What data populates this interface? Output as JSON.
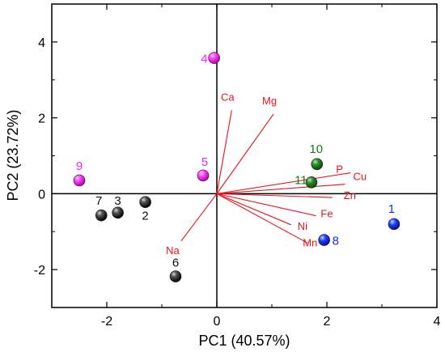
{
  "colors": {
    "loading": "#e8141c",
    "group_black": "#111111",
    "group_magenta": "#ff22ff",
    "group_green": "#1f7a1f",
    "group_blue": "#1133ee"
  },
  "chart_data": {
    "type": "scatter",
    "subtype": "biplot",
    "title": "",
    "xlabel": "PC1 (40.57%)",
    "ylabel": "PC2 (23.72%)",
    "xlim": [
      -3,
      4
    ],
    "ylim": [
      -3,
      5
    ],
    "x_ticks": [
      "-2",
      "0",
      "2",
      "4"
    ],
    "y_ticks": [
      "-2",
      "0",
      "2",
      "4"
    ],
    "x_tick_values": [
      -2,
      0,
      2,
      4
    ],
    "y_tick_values": [
      -2,
      0,
      2,
      4
    ],
    "reference_lines": {
      "x": 0,
      "y": 0
    },
    "grid": false,
    "scores": [
      {
        "label": "1",
        "x": 3.22,
        "y": -0.8,
        "group": "blue"
      },
      {
        "label": "2",
        "x": -1.3,
        "y": -0.22,
        "group": "black"
      },
      {
        "label": "3",
        "x": -1.8,
        "y": -0.5,
        "group": "black"
      },
      {
        "label": "4",
        "x": -0.05,
        "y": 3.58,
        "group": "magenta"
      },
      {
        "label": "5",
        "x": -0.25,
        "y": 0.48,
        "group": "magenta"
      },
      {
        "label": "6",
        "x": -0.75,
        "y": -2.18,
        "group": "black"
      },
      {
        "label": "7",
        "x": -2.1,
        "y": -0.57,
        "group": "black"
      },
      {
        "label": "8",
        "x": 1.95,
        "y": -1.22,
        "group": "blue"
      },
      {
        "label": "9",
        "x": -2.5,
        "y": 0.35,
        "group": "magenta"
      },
      {
        "label": "10",
        "x": 1.82,
        "y": 0.78,
        "group": "green"
      },
      {
        "label": "11",
        "x": 1.72,
        "y": 0.3,
        "group": "green"
      }
    ],
    "loadings": [
      {
        "label": "Ca",
        "x": 0.27,
        "y": 2.2
      },
      {
        "label": "Mg",
        "x": 1.03,
        "y": 2.1
      },
      {
        "label": "P",
        "x": 2.43,
        "y": 0.55
      },
      {
        "label": "Cu",
        "x": 2.33,
        "y": 0.25
      },
      {
        "label": "Zn",
        "x": 2.1,
        "y": -0.1
      },
      {
        "label": "Fe",
        "x": 1.8,
        "y": -0.58
      },
      {
        "label": "Ni",
        "x": 1.35,
        "y": -0.82
      },
      {
        "label": "Mn",
        "x": 1.65,
        "y": -1.3
      },
      {
        "label": "Na",
        "x": -0.65,
        "y": -1.25
      }
    ]
  }
}
